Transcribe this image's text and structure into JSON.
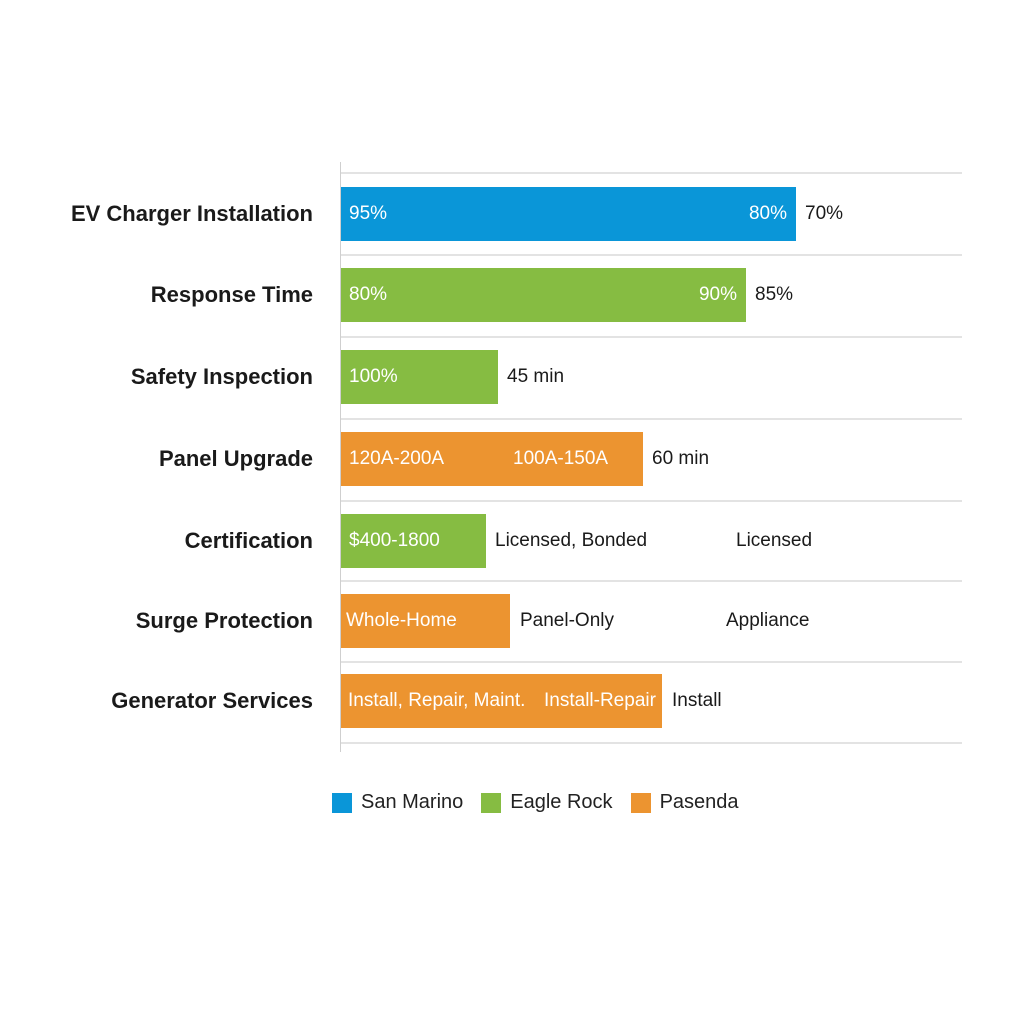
{
  "chart_data": {
    "type": "bar",
    "orientation": "horizontal",
    "grid": true,
    "legend_position": "bottom",
    "legend": [
      {
        "name": "San Marino",
        "color": "#0a96d8"
      },
      {
        "name": "Eagle Rock",
        "color": "#86bc42"
      },
      {
        "name": "Pasenda",
        "color": "#ec9430"
      }
    ],
    "categories": [
      "EV Charger Installation",
      "Response Time",
      "Safety Inspection",
      "Panel Upgrade",
      "Certification",
      "Surge Protection",
      "Generator Services"
    ],
    "rows": [
      {
        "category": "EV Charger Installation",
        "bar_series": "San Marino",
        "bar_color": "#0a96d8",
        "inside_labels": [
          "95%",
          "80%"
        ],
        "outside_labels": [
          "70%"
        ]
      },
      {
        "category": "Response Time",
        "bar_series": "Eagle Rock",
        "bar_color": "#86bc42",
        "inside_labels": [
          "80%",
          "90%"
        ],
        "outside_labels": [
          "85%"
        ]
      },
      {
        "category": "Safety Inspection",
        "bar_series": "Eagle Rock",
        "bar_color": "#86bc42",
        "inside_labels": [
          "100%"
        ],
        "outside_labels": [
          "45 min"
        ]
      },
      {
        "category": "Panel Upgrade",
        "bar_series": "Pasenda",
        "bar_color": "#ec9430",
        "inside_labels": [
          "120A-200A",
          "100A-150A"
        ],
        "outside_labels": [
          "60 min"
        ]
      },
      {
        "category": "Certification",
        "bar_series": "Eagle Rock",
        "bar_color": "#86bc42",
        "inside_labels": [
          "$400-1800"
        ],
        "outside_labels": [
          "Licensed, Bonded",
          "Licensed"
        ]
      },
      {
        "category": "Surge Protection",
        "bar_series": "Pasenda",
        "bar_color": "#ec9430",
        "inside_labels": [
          "Whole-Home"
        ],
        "outside_labels": [
          "Panel-Only",
          "Appliance"
        ]
      },
      {
        "category": "Generator Services",
        "bar_series": "Pasenda",
        "bar_color": "#ec9430",
        "inside_labels": [
          "Install, Repair, Maint.",
          "Install-Repair"
        ],
        "outside_labels": [
          "Install"
        ]
      }
    ]
  }
}
